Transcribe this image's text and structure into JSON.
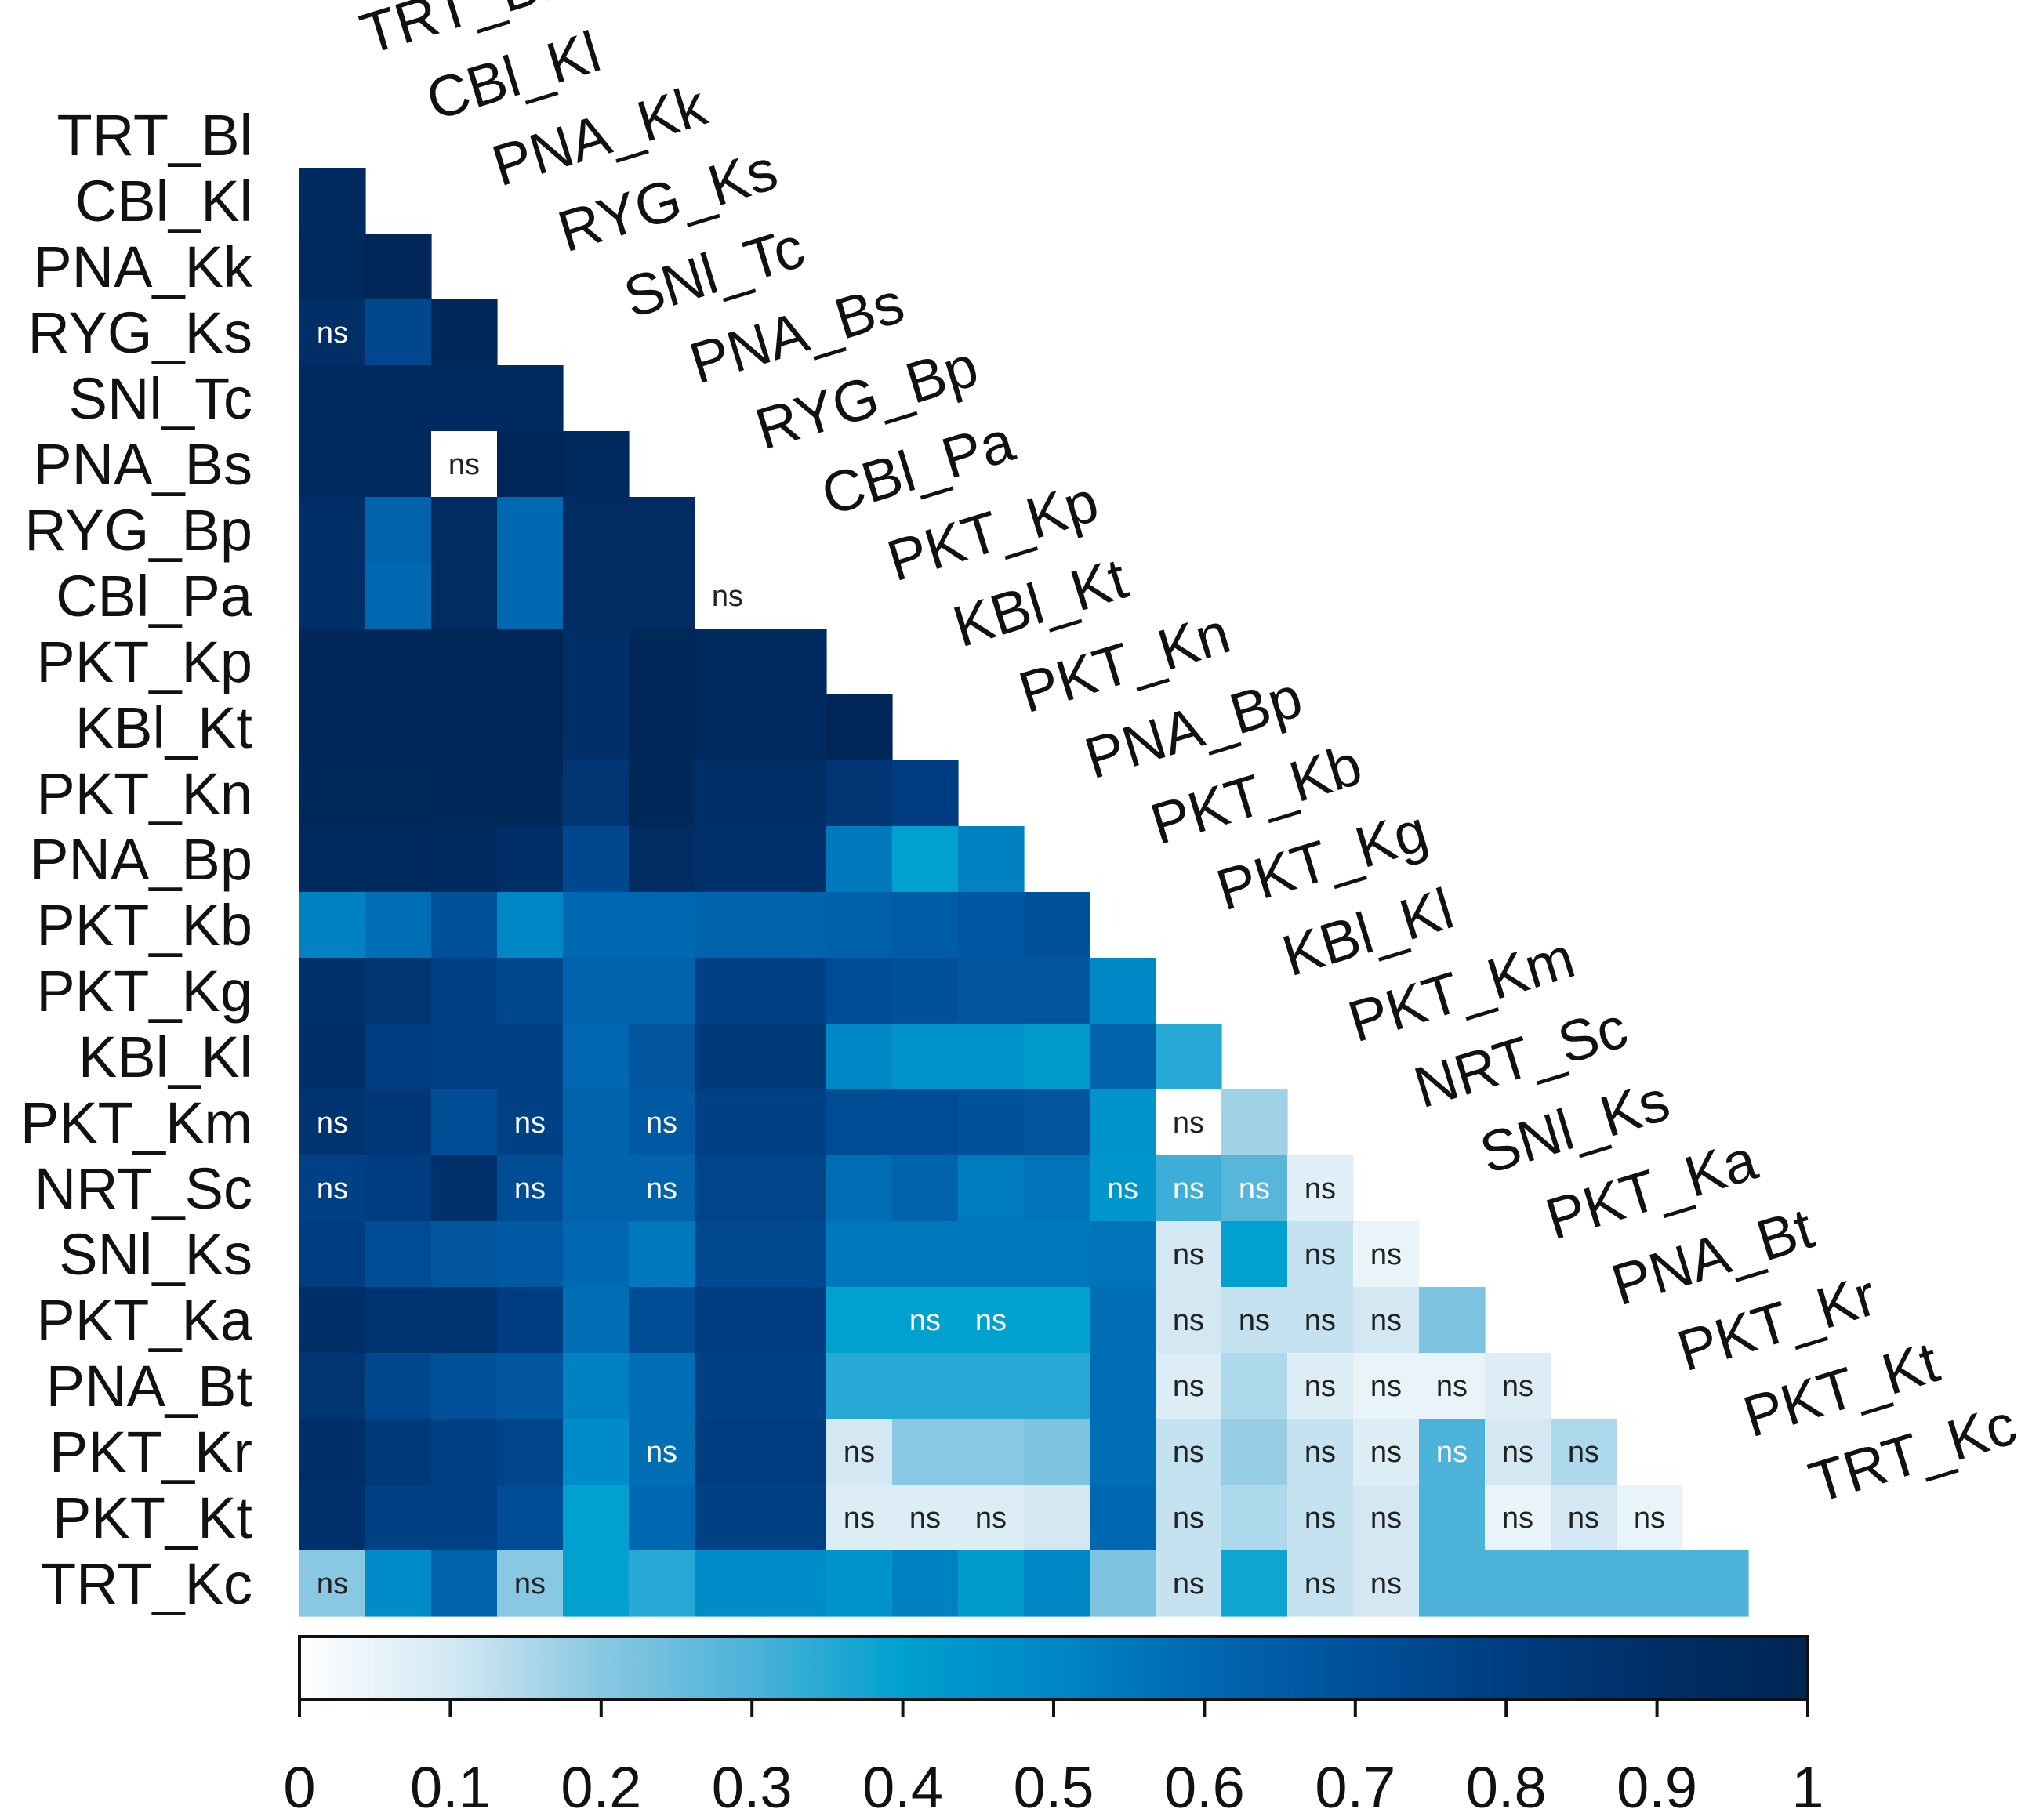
{
  "chart_data": {
    "type": "heatmap",
    "layout": "lower-triangular correlation matrix",
    "title": "",
    "labels": [
      "TRT_Bl",
      "CBl_Kl",
      "PNA_Kk",
      "RYG_Ks",
      "SNl_Tc",
      "PNA_Bs",
      "RYG_Bp",
      "CBl_Pa",
      "PKT_Kp",
      "KBl_Kt",
      "PKT_Kn",
      "PNA_Bp",
      "PKT_Kb",
      "PKT_Kg",
      "KBl_Kl",
      "PKT_Km",
      "NRT_Sc",
      "SNl_Ks",
      "PKT_Ka",
      "PNA_Bt",
      "PKT_Kr",
      "PKT_Kt",
      "TRT_Kc"
    ],
    "values": [
      [],
      [
        0.93
      ],
      [
        0.95,
        0.98
      ],
      [
        0.9,
        0.75,
        0.97
      ],
      [
        0.94,
        0.94,
        0.94,
        0.93
      ],
      [
        0.94,
        0.94,
        0.0,
        0.98,
        0.95
      ],
      [
        0.9,
        0.62,
        0.92,
        0.6,
        0.92,
        0.92
      ],
      [
        0.9,
        0.6,
        0.92,
        0.6,
        0.92,
        0.92,
        0.0
      ],
      [
        0.97,
        0.97,
        0.98,
        0.98,
        0.9,
        0.97,
        0.93,
        0.93
      ],
      [
        0.97,
        0.97,
        0.98,
        0.98,
        0.9,
        0.97,
        0.93,
        0.93,
        0.98
      ],
      [
        0.96,
        0.96,
        0.97,
        0.97,
        0.85,
        0.97,
        0.9,
        0.9,
        0.85,
        0.8
      ],
      [
        0.95,
        0.95,
        0.93,
        0.9,
        0.75,
        0.92,
        0.88,
        0.88,
        0.55,
        0.4,
        0.52
      ],
      [
        0.52,
        0.58,
        0.7,
        0.5,
        0.6,
        0.6,
        0.62,
        0.62,
        0.63,
        0.65,
        0.67,
        0.7
      ],
      [
        0.88,
        0.85,
        0.78,
        0.75,
        0.62,
        0.62,
        0.78,
        0.78,
        0.72,
        0.7,
        0.68,
        0.68,
        0.5
      ],
      [
        0.9,
        0.8,
        0.78,
        0.78,
        0.6,
        0.68,
        0.82,
        0.82,
        0.5,
        0.45,
        0.45,
        0.42,
        0.62,
        0.35
      ],
      [
        0.86,
        0.84,
        0.72,
        0.78,
        0.62,
        0.66,
        0.78,
        0.78,
        0.72,
        0.72,
        0.7,
        0.68,
        0.45,
        0.0,
        0.17
      ],
      [
        0.78,
        0.8,
        0.88,
        0.72,
        0.62,
        0.62,
        0.76,
        0.76,
        0.58,
        0.62,
        0.54,
        0.56,
        0.44,
        0.32,
        0.28,
        0.07
      ],
      [
        0.8,
        0.72,
        0.68,
        0.66,
        0.6,
        0.55,
        0.74,
        0.74,
        0.55,
        0.55,
        0.55,
        0.55,
        0.56,
        0.1,
        0.4,
        0.12,
        0.05
      ],
      [
        0.9,
        0.86,
        0.86,
        0.8,
        0.58,
        0.72,
        0.8,
        0.8,
        0.4,
        0.4,
        0.4,
        0.4,
        0.58,
        0.1,
        0.12,
        0.12,
        0.1,
        0.22
      ],
      [
        0.85,
        0.75,
        0.7,
        0.68,
        0.52,
        0.58,
        0.78,
        0.78,
        0.35,
        0.35,
        0.35,
        0.35,
        0.58,
        0.08,
        0.15,
        0.08,
        0.05,
        0.05,
        0.08
      ],
      [
        0.9,
        0.82,
        0.78,
        0.76,
        0.48,
        0.58,
        0.8,
        0.8,
        0.1,
        0.2,
        0.2,
        0.22,
        0.58,
        0.12,
        0.18,
        0.12,
        0.08,
        0.3,
        0.1,
        0.15
      ],
      [
        0.88,
        0.78,
        0.78,
        0.72,
        0.4,
        0.6,
        0.78,
        0.78,
        0.08,
        0.08,
        0.08,
        0.1,
        0.6,
        0.12,
        0.15,
        0.12,
        0.1,
        0.3,
        0.05,
        0.1,
        0.05
      ],
      [
        0.2,
        0.48,
        0.62,
        0.2,
        0.4,
        0.35,
        0.48,
        0.48,
        0.45,
        0.52,
        0.42,
        0.5,
        0.22,
        0.12,
        0.38,
        0.12,
        0.1,
        0.3,
        0.3,
        0.3,
        0.3,
        0.3
      ]
    ],
    "ns": [
      [],
      [
        0
      ],
      [
        0,
        0
      ],
      [
        1,
        0,
        0
      ],
      [
        0,
        0,
        0,
        0
      ],
      [
        0,
        0,
        1,
        0,
        0
      ],
      [
        0,
        0,
        0,
        0,
        0,
        0
      ],
      [
        0,
        0,
        0,
        0,
        0,
        0,
        1
      ],
      [
        0,
        0,
        0,
        0,
        0,
        0,
        0,
        0
      ],
      [
        0,
        0,
        0,
        0,
        0,
        0,
        0,
        0,
        0
      ],
      [
        0,
        0,
        0,
        0,
        0,
        0,
        0,
        0,
        0,
        0
      ],
      [
        0,
        0,
        0,
        0,
        0,
        0,
        0,
        0,
        0,
        0,
        0
      ],
      [
        0,
        0,
        0,
        0,
        0,
        0,
        0,
        0,
        0,
        0,
        0,
        0
      ],
      [
        0,
        0,
        0,
        0,
        0,
        0,
        0,
        0,
        0,
        0,
        0,
        0,
        0
      ],
      [
        0,
        0,
        0,
        0,
        0,
        0,
        0,
        0,
        0,
        0,
        0,
        0,
        0,
        0
      ],
      [
        1,
        0,
        0,
        1,
        0,
        1,
        0,
        0,
        0,
        0,
        0,
        0,
        0,
        1,
        0
      ],
      [
        1,
        0,
        0,
        1,
        0,
        1,
        0,
        0,
        0,
        0,
        0,
        0,
        1,
        1,
        1,
        1
      ],
      [
        0,
        0,
        0,
        0,
        0,
        0,
        0,
        0,
        0,
        0,
        0,
        0,
        0,
        1,
        0,
        1,
        1
      ],
      [
        0,
        0,
        0,
        0,
        0,
        0,
        0,
        0,
        0,
        1,
        1,
        0,
        0,
        1,
        1,
        1,
        1,
        0
      ],
      [
        0,
        0,
        0,
        0,
        0,
        0,
        0,
        0,
        0,
        0,
        0,
        0,
        0,
        1,
        0,
        1,
        1,
        1,
        1
      ],
      [
        0,
        0,
        0,
        0,
        0,
        1,
        0,
        0,
        1,
        0,
        0,
        0,
        0,
        1,
        0,
        1,
        1,
        1,
        1,
        1
      ],
      [
        0,
        0,
        0,
        0,
        0,
        0,
        0,
        0,
        1,
        1,
        1,
        0,
        0,
        1,
        0,
        1,
        1,
        0,
        1,
        1,
        1
      ],
      [
        1,
        0,
        0,
        1,
        0,
        0,
        0,
        0,
        0,
        0,
        0,
        0,
        0,
        1,
        0,
        1,
        1,
        0,
        0,
        0,
        0,
        0
      ]
    ],
    "ns_label": "ns",
    "colorbar": {
      "min": 0,
      "max": 1,
      "ticks": [
        "0",
        "0.1",
        "0.2",
        "0.3",
        "0.4",
        "0.5",
        "0.6",
        "0.7",
        "0.8",
        "0.9",
        "1"
      ],
      "colors": [
        "#ffffff",
        "#d3e8f3",
        "#89c8e2",
        "#4cb2d9",
        "#00a0cf",
        "#0087c6",
        "#0068b1",
        "#00509a",
        "#003d80",
        "#002e66",
        "#002554"
      ]
    },
    "grid": false,
    "legend": "colorbar-bottom"
  }
}
